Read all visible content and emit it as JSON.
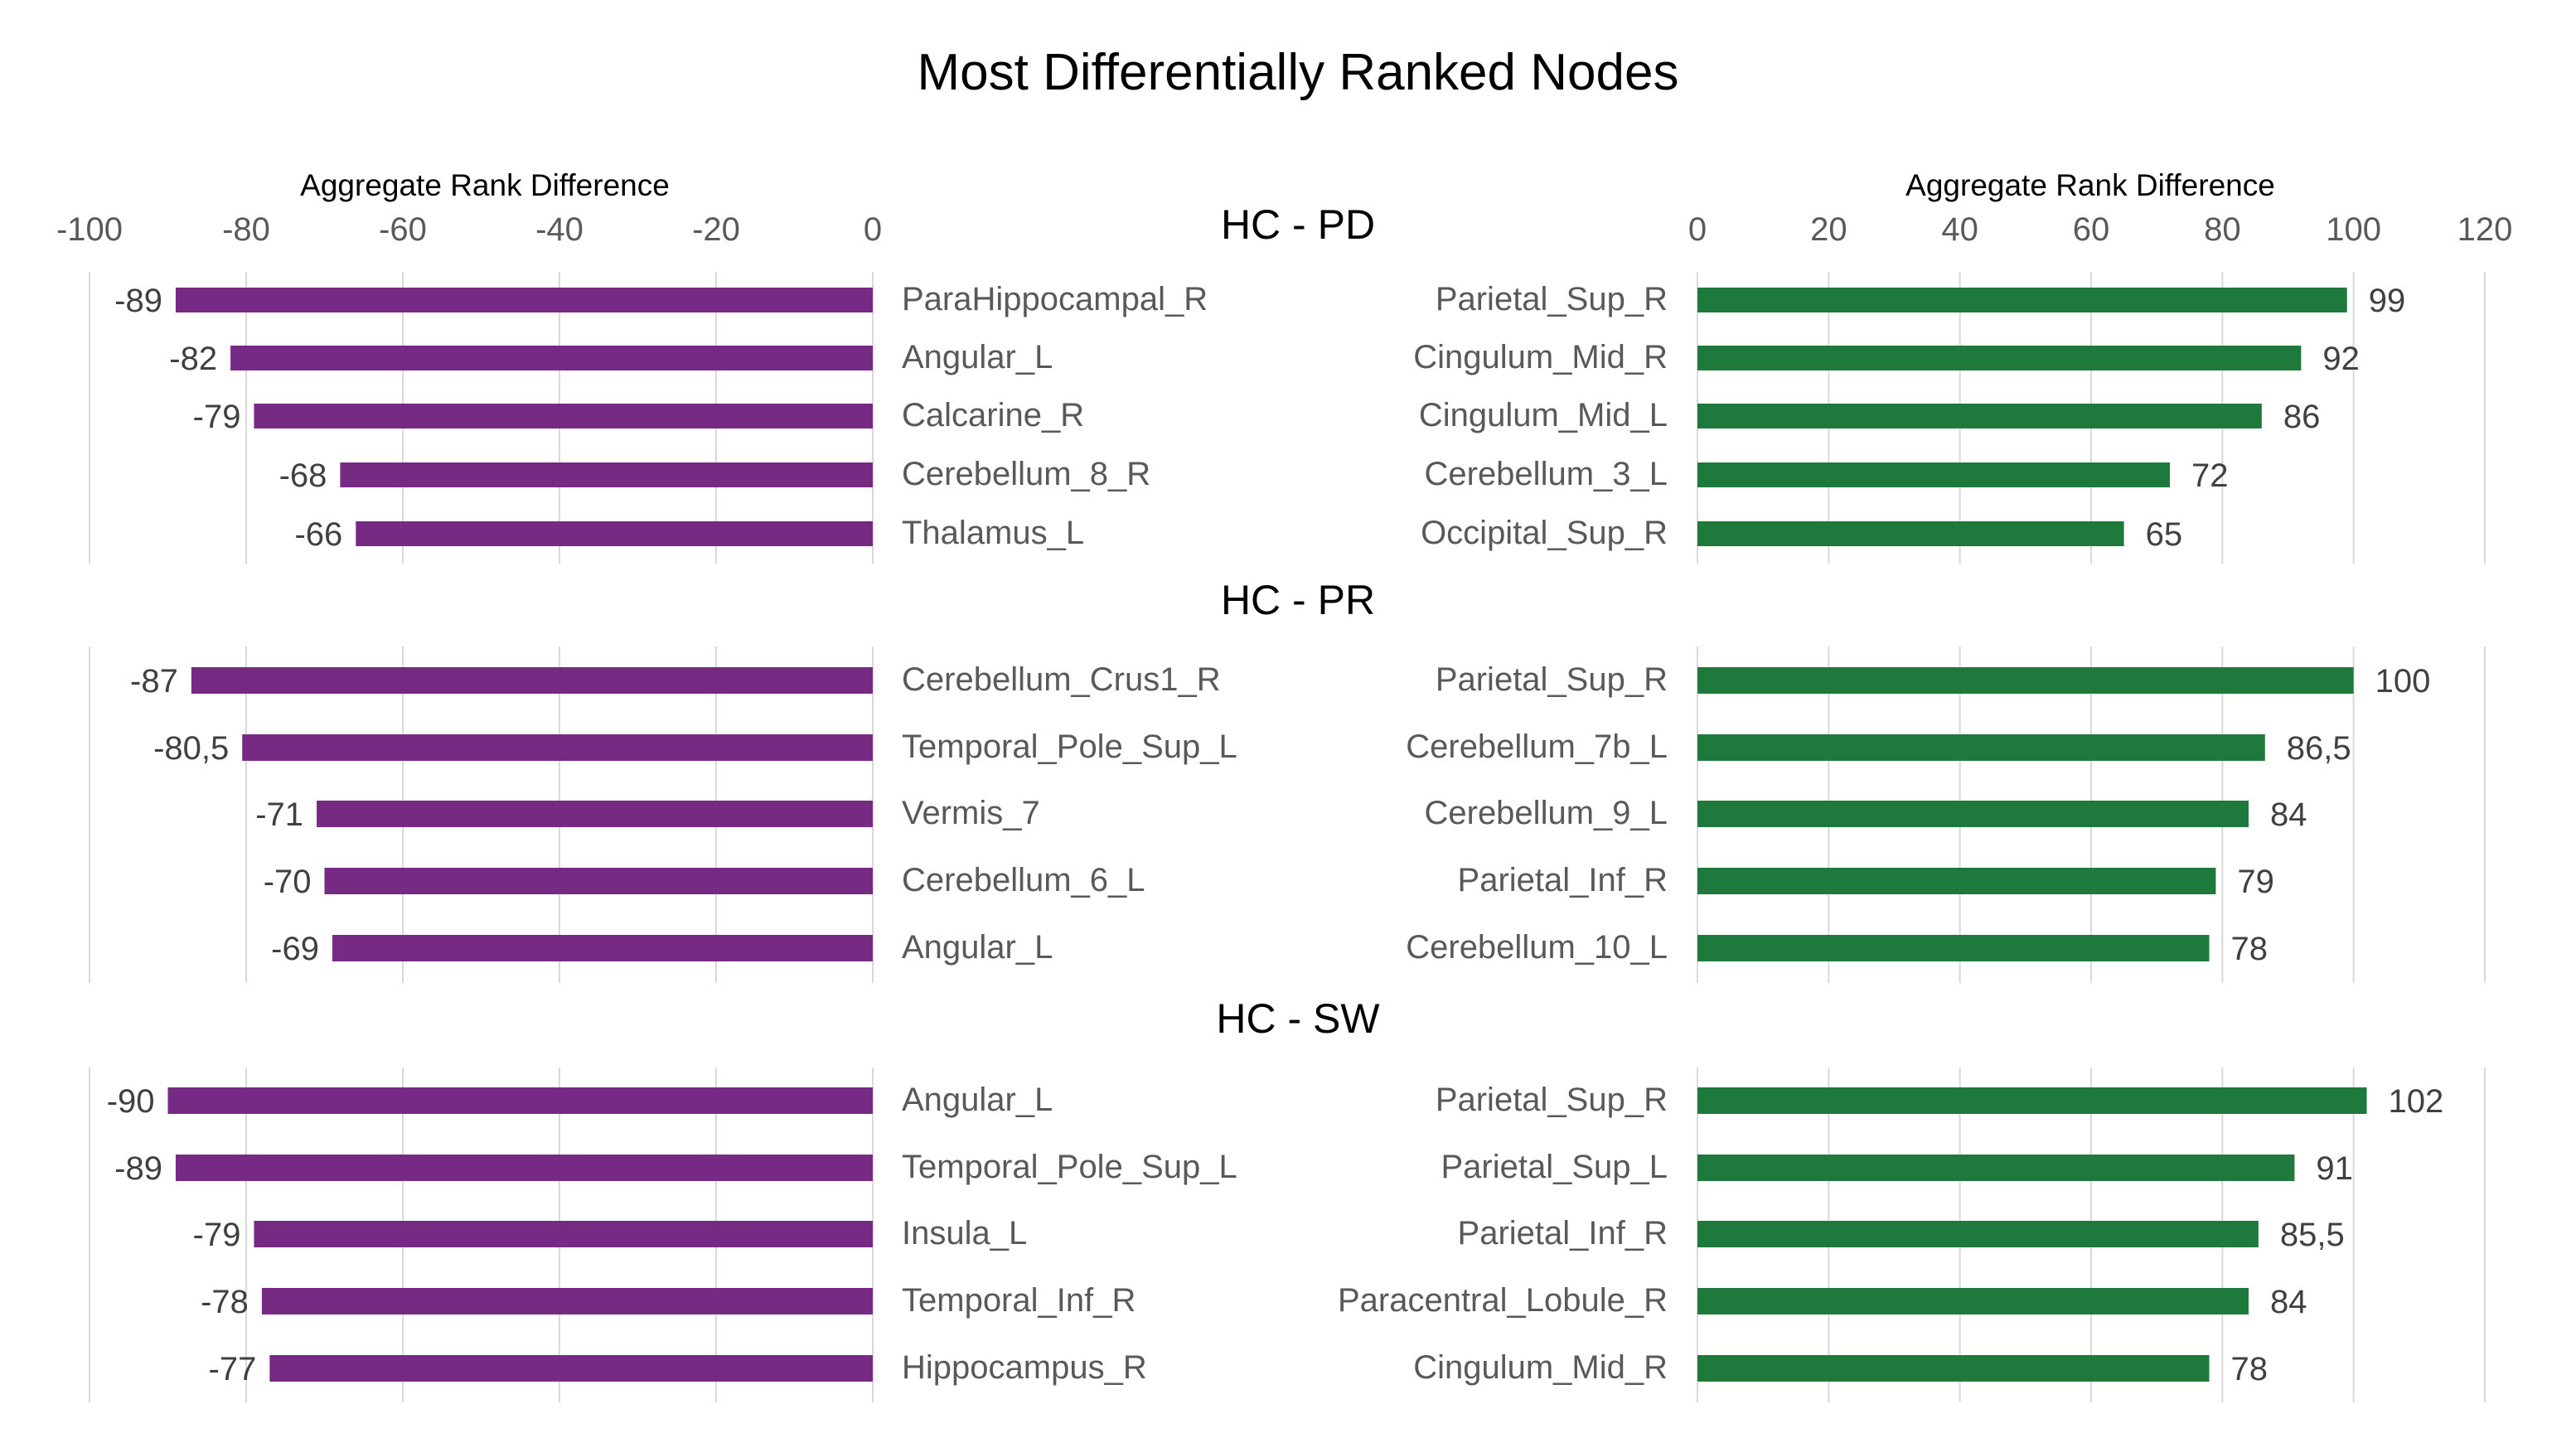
{
  "chart_data": {
    "type": "bar",
    "orientation": "horizontal",
    "title": "Most Differentially Ranked Nodes",
    "xlabel": "Aggregate Rank Difference",
    "left_xlim": [
      -100,
      0
    ],
    "left_ticks": [
      "-100",
      "-80",
      "-60",
      "-40",
      "-20",
      "0"
    ],
    "right_xlim": [
      0,
      120
    ],
    "right_ticks": [
      "0",
      "20",
      "40",
      "60",
      "80",
      "100",
      "120"
    ],
    "colors": {
      "negative": "#772a84",
      "positive": "#1e7a3c"
    },
    "grid": true,
    "panels": [
      {
        "title": "HC - PD",
        "negative": {
          "categories": [
            "ParaHippocampal_R",
            "Angular_L",
            "Calcarine_R",
            "Cerebellum_8_R",
            "Thalamus_L"
          ],
          "values": [
            -89,
            -82,
            -79,
            -68,
            -66
          ],
          "labels": [
            "-89",
            "-82",
            "-79",
            "-68",
            "-66"
          ]
        },
        "positive": {
          "categories": [
            "Parietal_Sup_R",
            "Cingulum_Mid_R",
            "Cingulum_Mid_L",
            "Cerebellum_3_L",
            "Occipital_Sup_R"
          ],
          "values": [
            99,
            92,
            86,
            72,
            65
          ],
          "labels": [
            "99",
            "92",
            "86",
            "72",
            "65"
          ]
        }
      },
      {
        "title": "HC - PR",
        "negative": {
          "categories": [
            "Cerebellum_Crus1_R",
            "Temporal_Pole_Sup_L",
            "Vermis_7",
            "Cerebellum_6_L",
            "Angular_L"
          ],
          "values": [
            -87,
            -80.5,
            -71,
            -70,
            -69
          ],
          "labels": [
            "-87",
            "-80,5",
            "-71",
            "-70",
            "-69"
          ]
        },
        "positive": {
          "categories": [
            "Parietal_Sup_R",
            "Cerebellum_7b_L",
            "Cerebellum_9_L",
            "Parietal_Inf_R",
            "Cerebellum_10_L"
          ],
          "values": [
            100,
            86.5,
            84,
            79,
            78
          ],
          "labels": [
            "100",
            "86,5",
            "84",
            "79",
            "78"
          ]
        }
      },
      {
        "title": "HC - SW",
        "negative": {
          "categories": [
            "Angular_L",
            "Temporal_Pole_Sup_L",
            "Insula_L",
            "Temporal_Inf_R",
            "Hippocampus_R"
          ],
          "values": [
            -90,
            -89,
            -79,
            -78,
            -77
          ],
          "labels": [
            "-90",
            "-89",
            "-79",
            "-78",
            "-77"
          ]
        },
        "positive": {
          "categories": [
            "Parietal_Sup_R",
            "Parietal_Sup_L",
            "Parietal_Inf_R",
            "Paracentral_Lobule_R",
            "Cingulum_Mid_R"
          ],
          "values": [
            102,
            91,
            85.5,
            84,
            78
          ],
          "labels": [
            "102",
            "91",
            "85,5",
            "84",
            "78"
          ]
        }
      }
    ]
  }
}
